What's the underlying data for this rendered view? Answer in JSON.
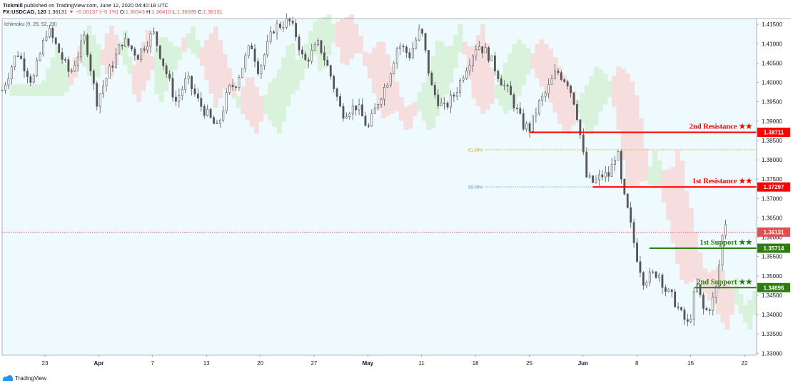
{
  "header": {
    "publisher": "Tickmill",
    "published_text": "published on TradingView.com, June 12, 2020 04:40:18 UTC",
    "symbol": "FX:USDCAD, 120",
    "last": "1.36131",
    "change": "▼ −0.00137 (−0.1%)",
    "open_label": "O:",
    "open": "1.36343",
    "high_label": "H:",
    "high": "1.36410",
    "low_label": "L:",
    "low": "1.36089",
    "close_label": "C:",
    "close": "1.36131"
  },
  "indicator_label": "Ichimoku (9, 26, 52, 26)",
  "footer": {
    "brand": "TradingView"
  },
  "colors": {
    "background": "#eefafd",
    "resistance": "#ff0000",
    "support": "#2e7d12",
    "cloud_bear": "#f6dede",
    "cloud_bull": "#d8f2dc",
    "candle": "#555555",
    "fib_618": "#c9a227",
    "fib_50": "#4a90d9",
    "price_line": "#e05050"
  },
  "chart_data": {
    "type": "candlestick",
    "ylim": [
      1.3295,
      1.4165
    ],
    "y_ticks": [
      "1.41500",
      "1.41000",
      "1.40500",
      "1.40000",
      "1.39500",
      "1.39000",
      "1.38500",
      "1.38000",
      "1.37500",
      "1.37000",
      "1.36500",
      "1.36000",
      "1.35500",
      "1.35000",
      "1.34500",
      "1.34000",
      "1.33500",
      "1.33000"
    ],
    "x_ticks": [
      {
        "label": "23",
        "bold": false
      },
      {
        "label": "Apr",
        "bold": true
      },
      {
        "label": "7",
        "bold": false
      },
      {
        "label": "13",
        "bold": false
      },
      {
        "label": "20",
        "bold": false
      },
      {
        "label": "27",
        "bold": false
      },
      {
        "label": "May",
        "bold": true
      },
      {
        "label": "11",
        "bold": false
      },
      {
        "label": "18",
        "bold": false
      },
      {
        "label": "25",
        "bold": false
      },
      {
        "label": "Jun",
        "bold": true
      },
      {
        "label": "8",
        "bold": false
      },
      {
        "label": "15",
        "bold": false
      },
      {
        "label": "22",
        "bold": false
      }
    ],
    "close_path": [
      [
        0,
        1.398
      ],
      [
        0.02,
        1.408
      ],
      [
        0.04,
        1.4
      ],
      [
        0.06,
        1.414
      ],
      [
        0.09,
        1.402
      ],
      [
        0.11,
        1.412
      ],
      [
        0.125,
        1.395
      ],
      [
        0.14,
        1.402
      ],
      [
        0.16,
        1.411
      ],
      [
        0.18,
        1.407
      ],
      [
        0.2,
        1.413
      ],
      [
        0.23,
        1.395
      ],
      [
        0.245,
        1.401
      ],
      [
        0.26,
        1.395
      ],
      [
        0.285,
        1.388
      ],
      [
        0.3,
        1.398
      ],
      [
        0.31,
        1.4
      ],
      [
        0.33,
        1.41
      ],
      [
        0.34,
        1.403
      ],
      [
        0.36,
        1.414
      ],
      [
        0.38,
        1.416
      ],
      [
        0.39,
        1.412
      ],
      [
        0.4,
        1.405
      ],
      [
        0.42,
        1.41
      ],
      [
        0.435,
        1.402
      ],
      [
        0.45,
        1.392
      ],
      [
        0.47,
        1.394
      ],
      [
        0.485,
        1.388
      ],
      [
        0.5,
        1.396
      ],
      [
        0.51,
        1.4
      ],
      [
        0.525,
        1.41
      ],
      [
        0.54,
        1.407
      ],
      [
        0.555,
        1.414
      ],
      [
        0.57,
        1.398
      ],
      [
        0.585,
        1.393
      ],
      [
        0.6,
        1.397
      ],
      [
        0.615,
        1.404
      ],
      [
        0.63,
        1.41
      ],
      [
        0.645,
        1.407
      ],
      [
        0.66,
        1.401
      ],
      [
        0.675,
        1.396
      ],
      [
        0.69,
        1.389
      ],
      [
        0.7,
        1.388
      ],
      [
        0.71,
        1.394
      ],
      [
        0.72,
        1.397
      ],
      [
        0.735,
        1.403
      ],
      [
        0.75,
        1.4
      ],
      [
        0.76,
        1.394
      ],
      [
        0.765,
        1.388
      ],
      [
        0.775,
        1.375
      ],
      [
        0.785,
        1.374
      ],
      [
        0.795,
        1.376
      ],
      [
        0.805,
        1.376
      ],
      [
        0.815,
        1.383
      ],
      [
        0.822,
        1.372
      ],
      [
        0.83,
        1.366
      ],
      [
        0.84,
        1.356
      ],
      [
        0.85,
        1.349
      ],
      [
        0.86,
        1.35
      ],
      [
        0.87,
        1.351
      ],
      [
        0.88,
        1.346
      ],
      [
        0.89,
        1.344
      ],
      [
        0.9,
        1.34
      ],
      [
        0.91,
        1.337
      ],
      [
        0.92,
        1.348
      ],
      [
        0.93,
        1.341
      ],
      [
        0.935,
        1.341
      ],
      [
        0.945,
        1.345
      ],
      [
        0.952,
        1.355
      ],
      [
        0.957,
        1.365
      ],
      [
        0.963,
        1.3613
      ]
    ],
    "levels": [
      {
        "name": "2nd Resistance ★★",
        "value": "1.38711",
        "y": 1.38711,
        "x_start": 0.699,
        "kind": "resistance"
      },
      {
        "name": "1st Resistance ★★",
        "value": "1.37297",
        "y": 1.37297,
        "x_start": 0.783,
        "kind": "resistance"
      },
      {
        "name": "1st Support ★★",
        "value": "1.35714",
        "y": 1.35714,
        "x_start": 0.858,
        "kind": "support"
      },
      {
        "name": "2nd Support ★★",
        "value": "1.34696",
        "y": 1.34696,
        "x_start": 0.918,
        "kind": "support"
      }
    ],
    "fibs": [
      {
        "label": "61.80%",
        "y": 1.3826,
        "kind": "fib_618"
      },
      {
        "label": "50.00%",
        "y": 1.373,
        "kind": "fib_50"
      }
    ],
    "current_price": {
      "label": "1.36131",
      "y": 1.36131
    }
  }
}
